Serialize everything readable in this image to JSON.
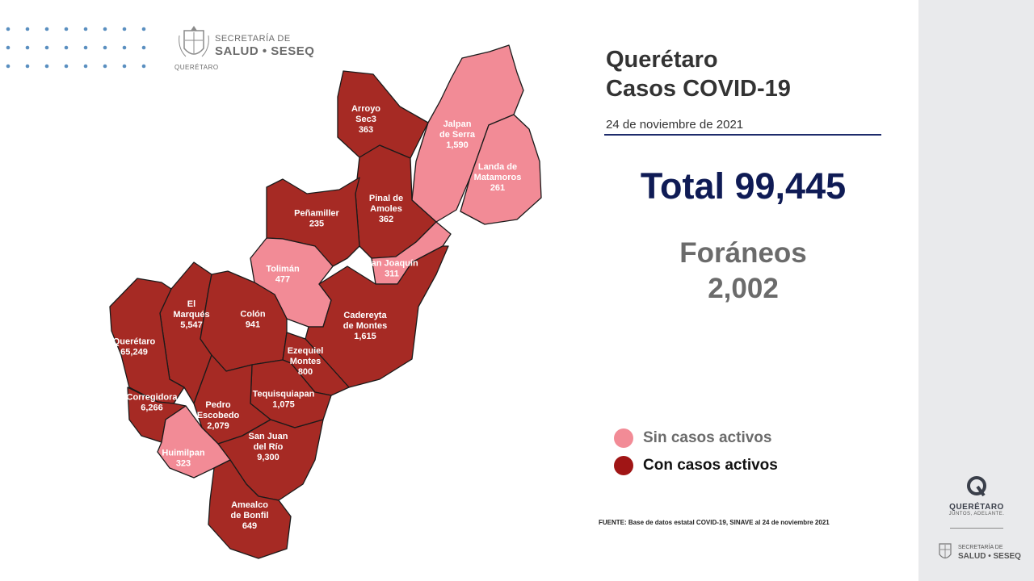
{
  "header": {
    "org_line1": "SECRETARÍA DE",
    "org_line2": "SALUD • SESEQ",
    "state_small": "QUERÉTARO"
  },
  "title_line1": "Querétaro",
  "title_line2": "Casos COVID-19",
  "date": "24 de noviembre de 2021",
  "total": "Total 99,445",
  "foraneos_label": "Foráneos",
  "foraneos_value": "2,002",
  "legend": {
    "no_active": {
      "label": "Sin casos activos",
      "color": "#f28b96"
    },
    "active": {
      "label": "Con casos activos",
      "color": "#a01515"
    }
  },
  "source": "FUENTE: Base de datos estatal COVID-19,  SINAVE  al 24 de noviembre 2021",
  "colors": {
    "no_active": "#f28b96",
    "active": "#a62a24",
    "border": "#111111"
  },
  "municipalities": [
    {
      "name_lines": [
        "Arroyo",
        "Sec3"
      ],
      "value": "363",
      "status": "active"
    },
    {
      "name_lines": [
        "Jalpan",
        "de Serra"
      ],
      "value": "1,590",
      "status": "no_active"
    },
    {
      "name_lines": [
        "Landa de",
        "Matamoros"
      ],
      "value": "261",
      "status": "no_active"
    },
    {
      "name_lines": [
        "Pinal de",
        "Amoles"
      ],
      "value": "362",
      "status": "active"
    },
    {
      "name_lines": [
        "Peñamiller"
      ],
      "value": "235",
      "status": "active"
    },
    {
      "name_lines": [
        "San Joaquín"
      ],
      "value": "311",
      "status": "no_active"
    },
    {
      "name_lines": [
        "Tolimán"
      ],
      "value": "477",
      "status": "no_active"
    },
    {
      "name_lines": [
        "El",
        "Marqués"
      ],
      "value": "5,547",
      "status": "active"
    },
    {
      "name_lines": [
        "Colón"
      ],
      "value": "941",
      "status": "active"
    },
    {
      "name_lines": [
        "Cadereyta",
        "de Montes"
      ],
      "value": "1,615",
      "status": "active"
    },
    {
      "name_lines": [
        "Querétaro"
      ],
      "value": "65,249",
      "status": "active"
    },
    {
      "name_lines": [
        "Ezequiel",
        "Montes"
      ],
      "value": "800",
      "status": "active"
    },
    {
      "name_lines": [
        "Corregidora"
      ],
      "value": "6,266",
      "status": "active"
    },
    {
      "name_lines": [
        "Tequisquiapan"
      ],
      "value": "1,075",
      "status": "active"
    },
    {
      "name_lines": [
        "Pedro",
        "Escobedo"
      ],
      "value": "2,079",
      "status": "active"
    },
    {
      "name_lines": [
        "San Juan",
        "del Río"
      ],
      "value": "9,300",
      "status": "active"
    },
    {
      "name_lines": [
        "Huimilpan"
      ],
      "value": "323",
      "status": "no_active"
    },
    {
      "name_lines": [
        "Amealco",
        "de Bonfil"
      ],
      "value": "649",
      "status": "active"
    }
  ],
  "sidebar": {
    "brand_word": "QUERÉTARO",
    "brand_sub": "JUNTOS, ADELANTE.",
    "org_line1": "SECRETARÍA DE",
    "org_line2": "SALUD • SESEQ"
  }
}
